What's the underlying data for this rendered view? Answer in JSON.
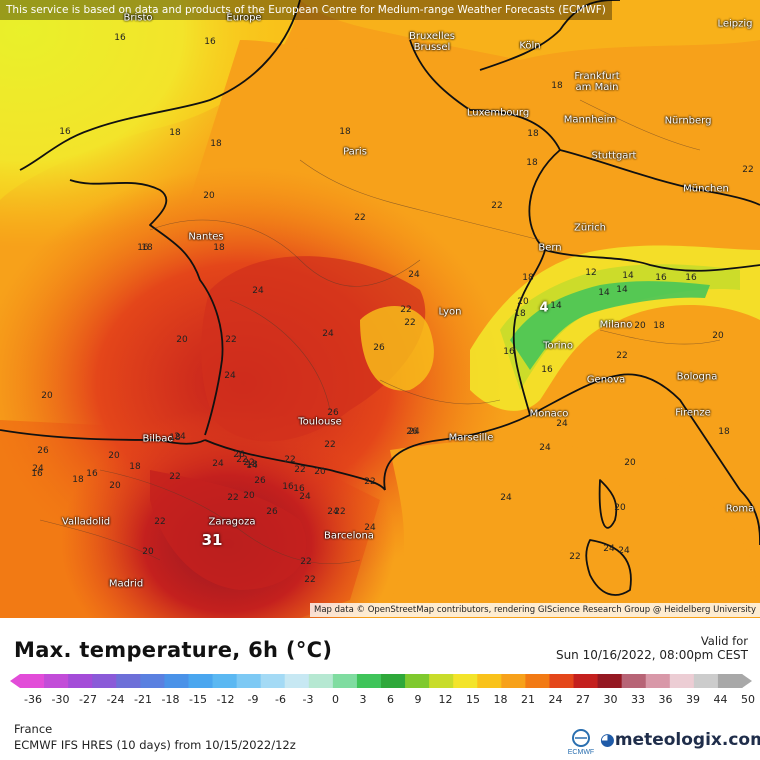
{
  "banner": "This service is based on data and products of the European Centre for Medium-range Weather Forecasts (ECMWF)",
  "attribution": "Map data © OpenStreetMap contributors, rendering GIScience Research Group @ Heidelberg University",
  "title": "Max. temperature, 6h (°C)",
  "valid_label": "Valid for",
  "valid_time": "Sun 10/16/2022, 08:00pm CEST",
  "region": "France",
  "model": "ECMWF IFS HRES (10 days) from 10/15/2022/12z",
  "brand": "meteologix.com",
  "brand_logo_label": "ECMWF",
  "scale": {
    "ticks": [
      "-36",
      "-30",
      "-27",
      "-24",
      "-21",
      "-18",
      "-15",
      "-12",
      "-9",
      "-6",
      "-3",
      "0",
      "3",
      "6",
      "9",
      "12",
      "15",
      "18",
      "21",
      "24",
      "27",
      "30",
      "33",
      "36",
      "39",
      "44",
      "50"
    ],
    "colors": [
      "#e24cd8",
      "#c24cd8",
      "#a44cd8",
      "#8a5ad8",
      "#6d6fd8",
      "#5a80e0",
      "#4a92e8",
      "#4aa6ef",
      "#5bb8f2",
      "#7dc9f4",
      "#a4daf5",
      "#c7e8f3",
      "#b6e8d2",
      "#7fdca0",
      "#3fc45a",
      "#2ea83a",
      "#7fc92e",
      "#c8dc2a",
      "#f3e42a",
      "#f9c21a",
      "#f7a11a",
      "#f27a14",
      "#e4461a",
      "#c4201e",
      "#951822",
      "#b76476",
      "#d898a8",
      "#eccdd4",
      "#cccccc",
      "#a8a8a8"
    ]
  },
  "cities": [
    {
      "name": "Bristo"
    },
    {
      "name": "Europe"
    },
    {
      "name": "Bruxelles\nBrussel"
    },
    {
      "name": "Köln"
    },
    {
      "name": "Leipzig"
    },
    {
      "name": "Frankfurt\nam Main"
    },
    {
      "name": "Luxembourg"
    },
    {
      "name": "Mannheim"
    },
    {
      "name": "Nürnberg"
    },
    {
      "name": "Paris"
    },
    {
      "name": "Stuttgart"
    },
    {
      "name": "München"
    },
    {
      "name": "Nantes"
    },
    {
      "name": "Zürich"
    },
    {
      "name": "Bern"
    },
    {
      "name": "Lyon"
    },
    {
      "name": "Milano"
    },
    {
      "name": "Torino"
    },
    {
      "name": "Genova"
    },
    {
      "name": "Bologna"
    },
    {
      "name": "Toulouse"
    },
    {
      "name": "Monaco"
    },
    {
      "name": "Marseille"
    },
    {
      "name": "Firenze"
    },
    {
      "name": "Bilbao"
    },
    {
      "name": "Zaragoza"
    },
    {
      "name": "Barcelona"
    },
    {
      "name": "Roma"
    },
    {
      "name": "Valladolid"
    },
    {
      "name": "Madrid"
    }
  ],
  "values": [
    "16",
    "16",
    "16",
    "18",
    "18",
    "16",
    "18",
    "18",
    "18",
    "18",
    "20",
    "18",
    "18",
    "20",
    "22",
    "20",
    "16",
    "18",
    "20",
    "24",
    "18",
    "22",
    "22",
    "24",
    "22",
    "22",
    "20",
    "18",
    "16",
    "16",
    "14",
    "12",
    "14",
    "16",
    "16",
    "20",
    "18",
    "14",
    "14",
    "22",
    "20",
    "18",
    "20",
    "24",
    "24",
    "24",
    "24",
    "26",
    "22",
    "24",
    "20",
    "22",
    "22",
    "26",
    "24",
    "26",
    "24",
    "26",
    "22",
    "22",
    "18",
    "16",
    "26",
    "24",
    "26",
    "24",
    "22",
    "24",
    "22",
    "20",
    "20",
    "18",
    "24",
    "22",
    "22",
    "18",
    "16",
    "16",
    "14",
    "20",
    "22",
    "22",
    "22",
    "24",
    "26",
    "22",
    "22",
    "24",
    "20",
    "24",
    "31",
    "4"
  ]
}
